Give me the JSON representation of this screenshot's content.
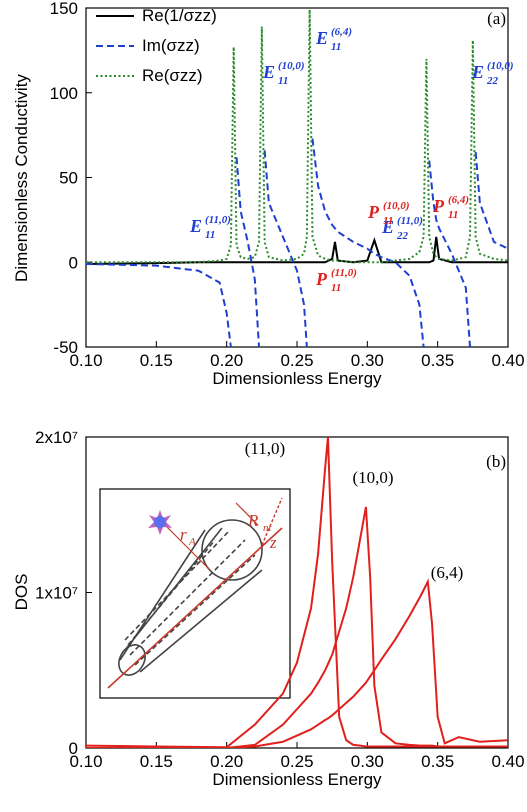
{
  "chart_data": [
    {
      "type": "line",
      "panel_label": "(a)",
      "x_label": "Dimensionless Energy",
      "y_label": "Dimensionless Conductivity",
      "xlim": [
        0.1,
        0.4
      ],
      "xticks": [
        {
          "value": 0.1,
          "label": "0.10"
        },
        {
          "value": 0.15,
          "label": "0.15"
        },
        {
          "value": 0.2,
          "label": "0.20"
        },
        {
          "value": 0.25,
          "label": "0.25"
        },
        {
          "value": 0.3,
          "label": "0.30"
        },
        {
          "value": 0.35,
          "label": "0.35"
        },
        {
          "value": 0.4,
          "label": "0.40"
        }
      ],
      "ylim": [
        -50,
        150
      ],
      "yticks": [
        -50,
        0,
        50,
        100,
        150
      ],
      "legend": "upper left",
      "x": [
        0.1,
        0.15,
        0.18,
        0.195,
        0.2,
        0.203,
        0.205,
        0.207,
        0.21,
        0.215,
        0.22,
        0.223,
        0.225,
        0.227,
        0.23,
        0.24,
        0.25,
        0.255,
        0.257,
        0.259,
        0.261,
        0.265,
        0.27,
        0.275,
        0.277,
        0.279,
        0.29,
        0.3,
        0.305,
        0.31,
        0.32,
        0.33,
        0.337,
        0.34,
        0.342,
        0.344,
        0.347,
        0.349,
        0.351,
        0.36,
        0.37,
        0.373,
        0.375,
        0.377,
        0.38,
        0.39,
        0.4
      ],
      "series": [
        {
          "name": "Re(1/σzz)",
          "color": "#000000",
          "dash": "solid",
          "values": [
            -1,
            -0.5,
            0,
            0,
            0,
            0,
            0,
            0,
            0,
            0,
            0,
            0,
            0,
            0,
            0,
            0,
            0,
            0,
            0,
            0,
            0,
            0,
            0,
            2,
            12,
            1,
            0,
            1,
            13,
            0,
            0,
            0,
            0,
            0,
            0,
            0,
            1,
            15,
            2,
            0,
            0,
            0,
            0,
            0,
            0,
            0,
            0
          ]
        },
        {
          "name": "Im(σzz)",
          "color": "#1f3fd1",
          "dash": "dashed",
          "values": [
            -1,
            -2,
            -5,
            -12,
            -30,
            -50,
            null,
            62,
            30,
            12,
            -10,
            -50,
            null,
            66,
            35,
            15,
            -5,
            -25,
            -50,
            null,
            73,
            45,
            30,
            22,
            20,
            18,
            12,
            8,
            5,
            3,
            0,
            -8,
            -25,
            -50,
            null,
            60,
            35,
            25,
            20,
            5,
            -15,
            -50,
            null,
            65,
            35,
            12,
            8
          ]
        },
        {
          "name": "Re(σzz)",
          "color": "#2a8a2a",
          "dash": "dotted",
          "values": [
            0,
            0,
            0,
            1,
            2,
            10,
            127,
            10,
            3,
            2,
            3,
            12,
            139,
            12,
            3,
            1,
            2,
            5,
            15,
            149,
            15,
            4,
            2,
            1,
            1,
            1,
            0,
            0,
            0,
            0,
            1,
            2,
            6,
            15,
            120,
            15,
            5,
            3,
            2,
            1,
            3,
            15,
            131,
            15,
            5,
            2,
            1
          ]
        }
      ],
      "annotations": [
        {
          "main": "E",
          "sub": "11",
          "sup": "(11,0)",
          "color": "#1f3fd1"
        },
        {
          "main": "E",
          "sub": "11",
          "sup": "(10,0)",
          "color": "#1f3fd1"
        },
        {
          "main": "E",
          "sub": "11",
          "sup": "(6,4)",
          "color": "#1f3fd1"
        },
        {
          "main": "E",
          "sub": "22",
          "sup": "(11,0)",
          "color": "#1f3fd1"
        },
        {
          "main": "E",
          "sub": "22",
          "sup": "(10,0)",
          "color": "#1f3fd1"
        },
        {
          "main": "P",
          "sub": "11",
          "sup": "(11,0)",
          "color": "#e0201b"
        },
        {
          "main": "P",
          "sub": "11",
          "sup": "(10,0)",
          "color": "#e0201b"
        },
        {
          "main": "P",
          "sub": "11",
          "sup": "(6,4)",
          "color": "#e0201b"
        }
      ]
    },
    {
      "type": "line",
      "panel_label": "(b)",
      "x_label": "Dimensionless Energy",
      "y_label": "DOS",
      "xlim": [
        0.1,
        0.4
      ],
      "xticks": [
        {
          "value": 0.1,
          "label": "0.10"
        },
        {
          "value": 0.15,
          "label": "0.15"
        },
        {
          "value": 0.2,
          "label": "0.20"
        },
        {
          "value": 0.25,
          "label": "0.25"
        },
        {
          "value": 0.3,
          "label": "0.30"
        },
        {
          "value": 0.35,
          "label": "0.35"
        },
        {
          "value": 0.4,
          "label": "0.40"
        }
      ],
      "ylim": [
        0,
        20000000
      ],
      "yticks": [
        0,
        {
          "value": 10000000,
          "label": "1x10⁷"
        },
        {
          "value": 20000000,
          "label": "2x10⁷"
        }
      ],
      "x": [
        0.1,
        0.15,
        0.2,
        0.22,
        0.24,
        0.25,
        0.26,
        0.265,
        0.27,
        0.272,
        0.275,
        0.28,
        0.285,
        0.29,
        0.295,
        0.299,
        0.302,
        0.305,
        0.31,
        0.32,
        0.33,
        0.338,
        0.343,
        0.346,
        0.35,
        0.355,
        0.365,
        0.38,
        0.4
      ],
      "series": [
        {
          "name": "(11,0)",
          "color": "#e0201b",
          "dash": "solid",
          "values": [
            150000,
            100000,
            50000,
            1500000,
            3500000,
            5500000,
            9000000,
            12500000,
            18000000,
            20000000,
            12000000,
            2000000,
            500000,
            200000,
            150000,
            100000,
            100000,
            100000,
            100000,
            100000,
            100000,
            100000,
            100000,
            100000,
            100000,
            100000,
            100000,
            100000,
            100000
          ]
        },
        {
          "name": "(10,0)",
          "color": "#e0201b",
          "dash": "solid",
          "values": [
            0,
            0,
            0,
            200000,
            1500000,
            2500000,
            3500000,
            4200000,
            5000000,
            5400000,
            6000000,
            7500000,
            9000000,
            11000000,
            13500000,
            15500000,
            11000000,
            4000000,
            1000000,
            300000,
            200000,
            150000,
            150000,
            150000,
            100000,
            100000,
            100000,
            100000,
            100000
          ]
        },
        {
          "name": "(6,4)",
          "color": "#e0201b",
          "dash": "solid",
          "values": [
            0,
            0,
            0,
            100000,
            400000,
            800000,
            1200000,
            1500000,
            1800000,
            1900000,
            2100000,
            2500000,
            2900000,
            3300000,
            3800000,
            4200000,
            4600000,
            5000000,
            5700000,
            7000000,
            8500000,
            9800000,
            10700000,
            8000000,
            2000000,
            300000,
            700000,
            400000,
            500000
          ]
        }
      ],
      "inset": {
        "labels": [
          {
            "main": "r",
            "sub": "A"
          },
          {
            "main": "R",
            "sub": "nt"
          },
          {
            "main": "z"
          }
        ]
      }
    }
  ]
}
